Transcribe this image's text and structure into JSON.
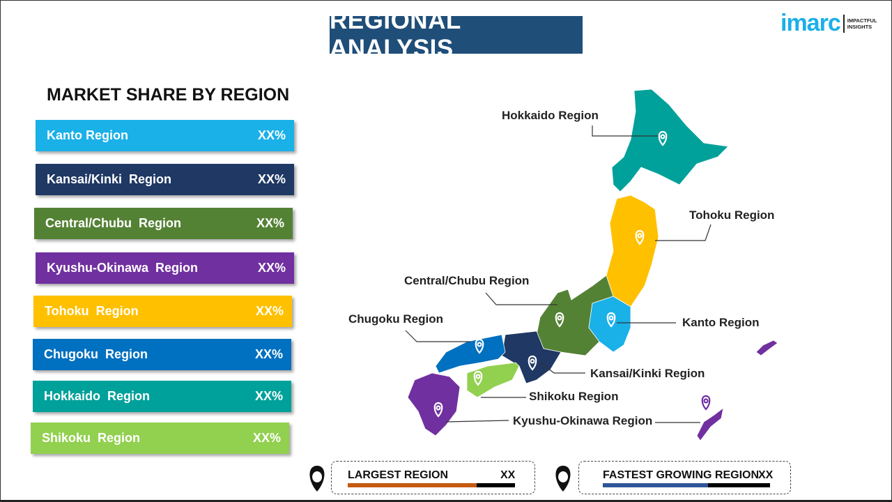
{
  "title": "REGIONAL ANALYSIS",
  "logo": {
    "brand": "imarc",
    "tagline_1": "IMPACTFUL",
    "tagline_2": "INSIGHTS"
  },
  "subtitle": "MARKET SHARE BY REGION",
  "regions": [
    {
      "label": "Kanto Region",
      "value": "XX%",
      "color": "#1ab0e8"
    },
    {
      "label": "Kansai/Kinki  Region",
      "value": "XX%",
      "color": "#1f3864"
    },
    {
      "label": "Central/Chubu  Region",
      "value": "XX%",
      "color": "#548235"
    },
    {
      "label": "Kyushu-Okinawa  Region",
      "value": "XX%",
      "color": "#7030a0"
    },
    {
      "label": "Tohoku  Region",
      "value": "XX%",
      "color": "#ffc000"
    },
    {
      "label": "Chugoku  Region",
      "value": "XX%",
      "color": "#0070c0"
    },
    {
      "label": "Hokkaido  Region",
      "value": "XX%",
      "color": "#00a19a"
    },
    {
      "label": "Shikoku  Region",
      "value": "XX%",
      "color": "#92d050"
    }
  ],
  "map_labels": {
    "hokkaido": "Hokkaido Region",
    "tohoku": "Tohoku Region",
    "central": "Central/Chubu Region",
    "chugoku": "Chugoku Region",
    "kanto": "Kanto Region",
    "kansai": "Kansai/Kinki Region",
    "shikoku": "Shikoku Region",
    "kyushu": "Kyushu-Okinawa Region"
  },
  "largest": {
    "label": "LARGEST REGION",
    "value": "XX",
    "color": "#c55a11",
    "fill": 0.77
  },
  "fastest": {
    "label": "FASTEST GROWING REGION",
    "value": "XX",
    "color": "#2f5597",
    "fill": 0.63
  }
}
